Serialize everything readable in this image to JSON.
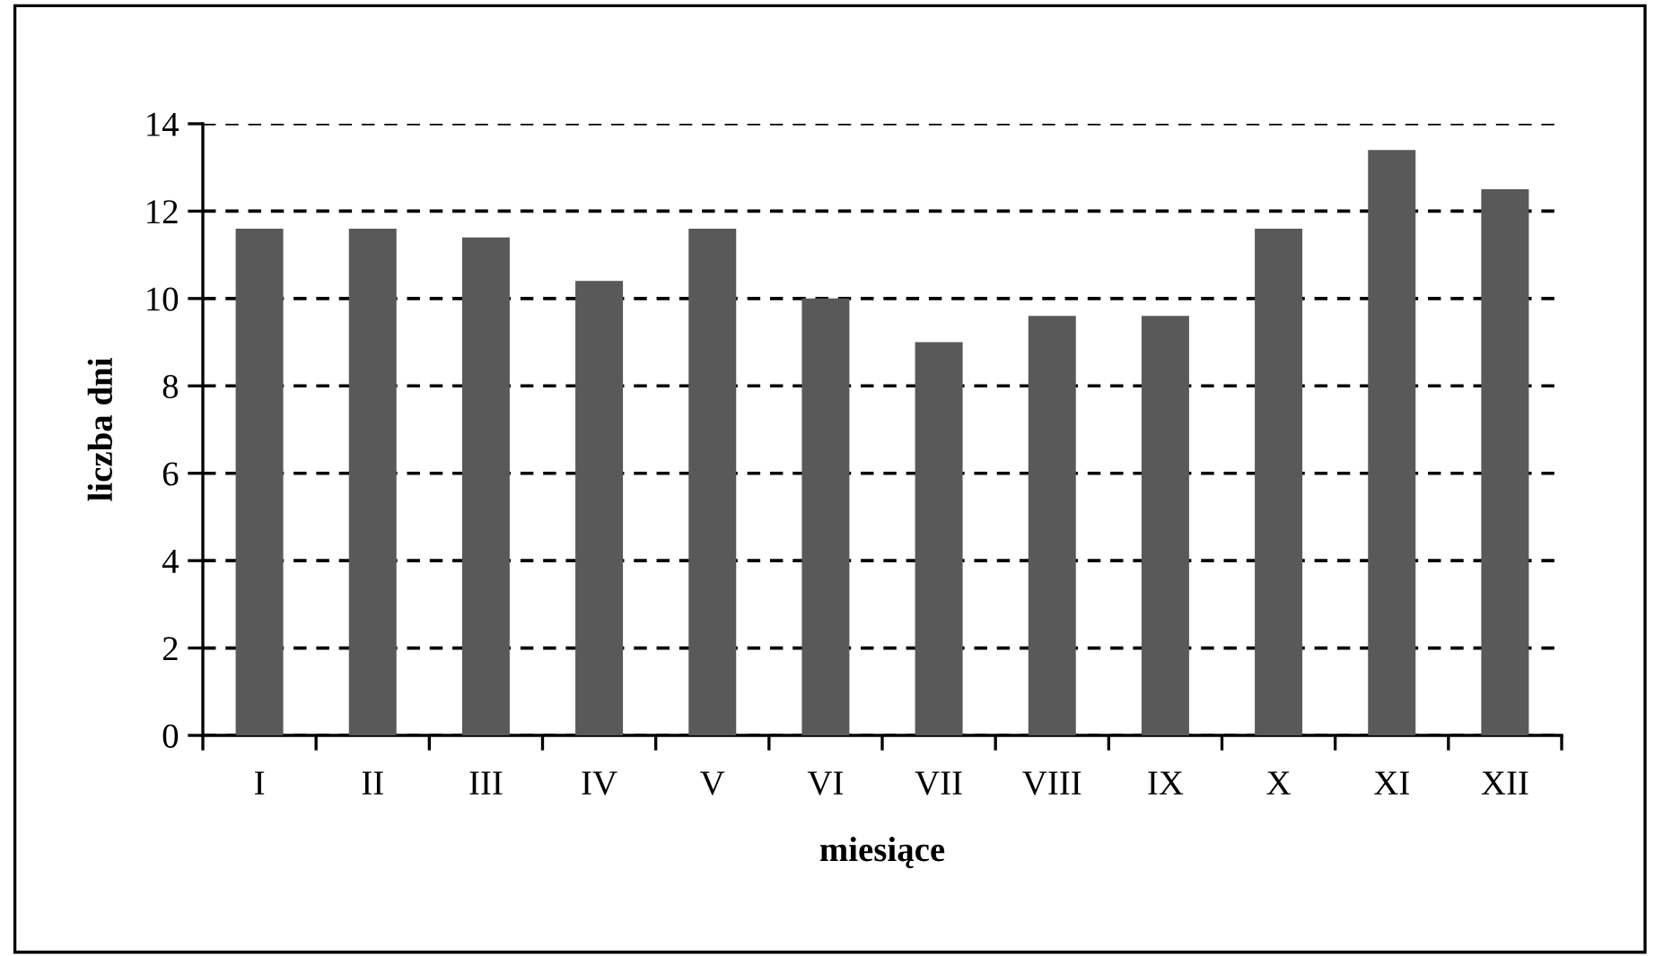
{
  "chart_data": {
    "type": "bar",
    "xlabel": "miesiące",
    "ylabel": "liczba dni",
    "categories": [
      "I",
      "II",
      "III",
      "IV",
      "V",
      "VI",
      "VII",
      "VIII",
      "IX",
      "X",
      "XI",
      "XII"
    ],
    "values": [
      11.6,
      11.6,
      11.4,
      10.4,
      11.6,
      10.0,
      9.0,
      9.6,
      9.6,
      11.6,
      13.4,
      12.5
    ],
    "color": "#595959",
    "ylim": [
      0,
      14
    ],
    "yticks": [
      0,
      2,
      4,
      6,
      8,
      10,
      12,
      14
    ],
    "grid": "y",
    "line_style": "dashed"
  }
}
